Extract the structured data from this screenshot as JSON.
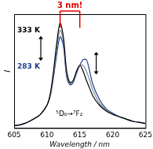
{
  "chart_data": {
    "type": "line",
    "x_label": "Wavelength / nm",
    "y_label": "I",
    "annotations": [
      "3 nm!",
      "333 K",
      "283 K",
      "⁵D₀→⁷F₂"
    ],
    "x": [
      605,
      606,
      607,
      608,
      609,
      610,
      610.5,
      611,
      611.5,
      612,
      612.5,
      613,
      613.5,
      614,
      614.5,
      615,
      615.5,
      616,
      616.5,
      617,
      618,
      619,
      620,
      621,
      622,
      623,
      624,
      625
    ],
    "series": [
      {
        "color": "#000000",
        "values": [
          0.02,
          0.03,
          0.05,
          0.08,
          0.12,
          0.2,
          0.3,
          0.5,
          0.75,
          0.92,
          0.8,
          0.5,
          0.4,
          0.42,
          0.5,
          0.55,
          0.5,
          0.42,
          0.35,
          0.28,
          0.2,
          0.15,
          0.12,
          0.1,
          0.08,
          0.06,
          0.05,
          0.04
        ]
      },
      {
        "color": "#7f8c99",
        "values": [
          0.02,
          0.03,
          0.05,
          0.08,
          0.12,
          0.2,
          0.29,
          0.47,
          0.7,
          0.86,
          0.76,
          0.47,
          0.39,
          0.41,
          0.49,
          0.55,
          0.55,
          0.5,
          0.42,
          0.33,
          0.22,
          0.16,
          0.12,
          0.1,
          0.08,
          0.06,
          0.05,
          0.04
        ]
      },
      {
        "color": "#1f3f8f",
        "values": [
          0.02,
          0.03,
          0.05,
          0.08,
          0.12,
          0.2,
          0.28,
          0.45,
          0.65,
          0.8,
          0.72,
          0.45,
          0.38,
          0.4,
          0.48,
          0.55,
          0.6,
          0.6,
          0.5,
          0.38,
          0.25,
          0.17,
          0.13,
          0.1,
          0.08,
          0.06,
          0.05,
          0.04
        ]
      }
    ],
    "xlim": [
      605,
      625
    ],
    "xticks": [
      605,
      610,
      615,
      620,
      625
    ],
    "ylim": [
      0,
      1
    ],
    "grid": false,
    "tick_labels": "x"
  }
}
